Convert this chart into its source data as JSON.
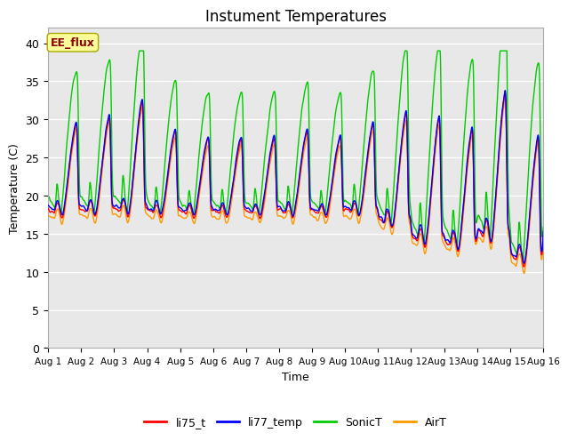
{
  "title": "Instument Temperatures",
  "xlabel": "Time",
  "ylabel": "Temperature (C)",
  "ylim": [
    0,
    42
  ],
  "yticks": [
    0,
    5,
    10,
    15,
    20,
    25,
    30,
    35,
    40
  ],
  "x_labels": [
    "Aug 1",
    "Aug 2",
    "Aug 3",
    "Aug 4",
    "Aug 5",
    "Aug 6",
    "Aug 7",
    "Aug 8",
    "Aug 9",
    "Aug 10",
    "Aug 11",
    "Aug 12",
    "Aug 13",
    "Aug 14",
    "Aug 15",
    "Aug 16"
  ],
  "legend_labels": [
    "li75_t",
    "li77_temp",
    "SonicT",
    "AirT"
  ],
  "legend_colors": [
    "#ff0000",
    "#0000ff",
    "#00cc00",
    "#ff9900"
  ],
  "line_colors": [
    "#ff0000",
    "#0000ff",
    "#00cc00",
    "#ff9900"
  ],
  "annotation_text": "EE_flux",
  "annotation_color": "#880000",
  "annotation_bg": "#ffff99",
  "background_color": "#e8e8e8",
  "fig_bg": "#ffffff",
  "grid_color": "#ffffff",
  "title_fontsize": 12,
  "axis_fontsize": 9
}
